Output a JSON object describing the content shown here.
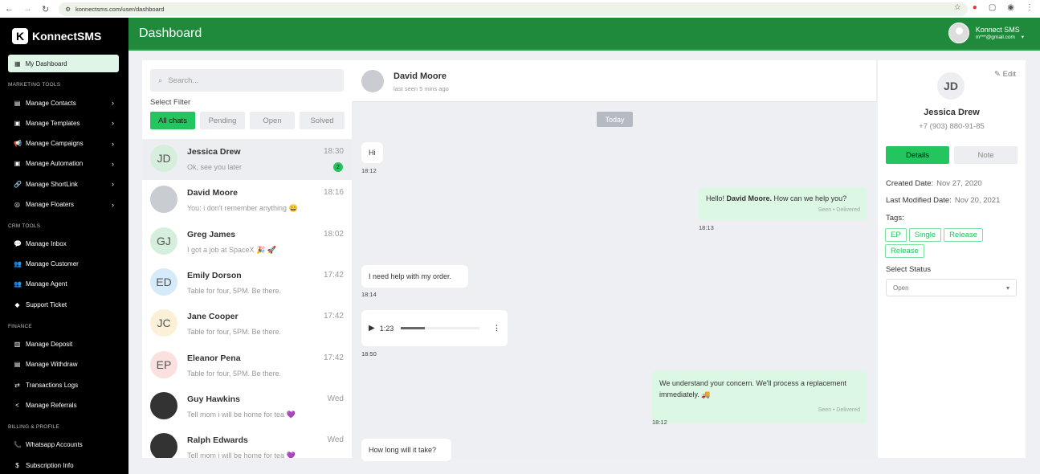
{
  "browser": {
    "url": "konnectsms.com/user/dashboard"
  },
  "brand": {
    "name": "KonnectSMS",
    "logo_letter": "K"
  },
  "sidebar": {
    "dashboard": "My Dashboard",
    "sections": [
      {
        "title": "MARKETING TOOLS",
        "items": [
          {
            "label": "Manage Contacts",
            "icon": "contacts-icon",
            "chevron": true
          },
          {
            "label": "Manage Templates",
            "icon": "template-icon",
            "chevron": true
          },
          {
            "label": "Manage Campaigns",
            "icon": "megaphone-icon",
            "chevron": true
          },
          {
            "label": "Manage Automation",
            "icon": "automation-icon",
            "chevron": true
          },
          {
            "label": "Manage ShortLink",
            "icon": "link-icon",
            "chevron": true
          },
          {
            "label": "Manage Floaters",
            "icon": "whatsapp-icon",
            "chevron": true
          }
        ]
      },
      {
        "title": "CRM TOOLS",
        "items": [
          {
            "label": "Manage Inbox",
            "icon": "chat-icon"
          },
          {
            "label": "Manage Customer",
            "icon": "users-icon"
          },
          {
            "label": "Manage Agent",
            "icon": "agent-icon"
          },
          {
            "label": "Support Ticket",
            "icon": "ticket-icon"
          }
        ]
      },
      {
        "title": "FINANCE",
        "items": [
          {
            "label": "Manage Deposit",
            "icon": "deposit-icon"
          },
          {
            "label": "Manage Withdraw",
            "icon": "withdraw-icon"
          },
          {
            "label": "Transactions Logs",
            "icon": "transfer-icon"
          },
          {
            "label": "Manage Referrals",
            "icon": "share-icon"
          }
        ]
      },
      {
        "title": "BILLING & PROFILE",
        "items": [
          {
            "label": "Whatsapp Accounts",
            "icon": "phone-icon"
          },
          {
            "label": "Subscription Info",
            "icon": "dollar-icon"
          }
        ]
      }
    ]
  },
  "header": {
    "title": "Dashboard",
    "user_name": "Konnect SMS",
    "user_email": "m***@gmail.com"
  },
  "chat_list": {
    "search_placeholder": "Search...",
    "filter_label": "Select Filter",
    "filters": [
      "All chats",
      "Pending",
      "Open",
      "Solved"
    ],
    "active_filter": "All chats",
    "chats": [
      {
        "initials": "JD",
        "name": "Jessica Drew",
        "message": "Ok, see you later",
        "time": "18:30",
        "unread": "2",
        "color": "#d6efdc"
      },
      {
        "initials": "",
        "name": "David Moore",
        "message": "You: i don't remember anything 😄",
        "time": "18:16",
        "color": "#c9ccd1"
      },
      {
        "initials": "GJ",
        "name": "Greg James",
        "message": "I got a job at SpaceX 🎉 🚀",
        "time": "18:02",
        "color": "#d6efdc"
      },
      {
        "initials": "ED",
        "name": "Emily Dorson",
        "message": "Table for four, 5PM. Be there.",
        "time": "17:42",
        "color": "#d6ebfa"
      },
      {
        "initials": "JC",
        "name": "Jane Cooper",
        "message": "Table for four, 5PM. Be there.",
        "time": "17:42",
        "color": "#fcf1d6"
      },
      {
        "initials": "EP",
        "name": "Eleanor Pena",
        "message": "Table for four, 5PM. Be there.",
        "time": "17:42",
        "color": "#fbe0e0"
      },
      {
        "initials": "",
        "name": "Guy Hawkins",
        "message": "Tell mom i will be home for tea 💜",
        "time": "Wed",
        "color": "#333"
      },
      {
        "initials": "",
        "name": "Ralph Edwards",
        "message": "Tell mom i will be home for tea 💜",
        "time": "Wed",
        "color": "#333"
      }
    ]
  },
  "chat": {
    "name": "David Moore",
    "status": "last seen 5 mins ago",
    "day": "Today",
    "m1": {
      "text": "Hi",
      "time": "18:12"
    },
    "m2": {
      "pre": "Hello! ",
      "bold": "David Moore.",
      "post": " How can we help you?",
      "status": "Seen • Delivered",
      "time": "18:13"
    },
    "m3": {
      "text": "I need help with my order.",
      "time": "18:14"
    },
    "m4": {
      "duration": "1:23",
      "progress": 0.3,
      "time": "18:50"
    },
    "m5": {
      "text": "We understand your concern. We'll process a replacement immediately. 🚚",
      "status": "Seen • Delivered",
      "time": "18:12"
    },
    "m6": {
      "text": "How long will it take?"
    }
  },
  "details": {
    "edit": "Edit",
    "initials": "JD",
    "name": "Jessica Drew",
    "phone": "+7 (903) 880-91-85",
    "tabs": [
      "Details",
      "Note"
    ],
    "created_label": "Created Date:",
    "created": "Nov 27, 2020",
    "modified_label": "Last Modified Date:",
    "modified": "Nov 20, 2021",
    "tags_label": "Tags:",
    "tags": [
      "EP",
      "Single",
      "Release",
      "Release"
    ],
    "status_label": "Select Status",
    "status": "Open"
  },
  "colors": {
    "accent": "#22c55e",
    "header": "#1f8a3b",
    "sidebar": "#000000"
  }
}
